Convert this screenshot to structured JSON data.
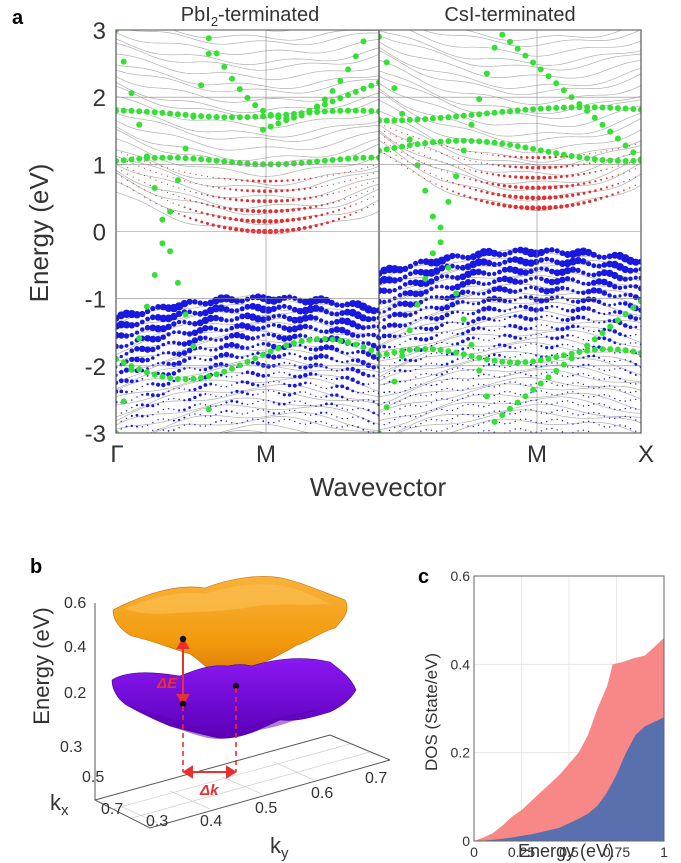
{
  "chart_data": [
    {
      "panel": "a",
      "type": "scatter",
      "title": "",
      "subplots": [
        {
          "title": "PbI2-terminated",
          "title_main": "PbI",
          "title_sub": "2",
          "title_tail": "-terminated"
        },
        {
          "title": "CsI-terminated"
        }
      ],
      "ylabel": "Energy (eV)",
      "xlabel": "Wavevector",
      "ylim": [
        -3,
        3
      ],
      "yticks": [
        "3",
        "2",
        "1",
        "0",
        "-1",
        "-2",
        "-3"
      ],
      "xtick_labels": {
        "gamma": "Γ",
        "m1": "M",
        "m2": "M",
        "x": "X"
      },
      "series": [
        {
          "name": "bulk bands",
          "color": "#b0b0b0"
        },
        {
          "name": "surface state (green)",
          "color": "#33e033"
        },
        {
          "name": "conduction weight (red)",
          "color": "#e03030"
        },
        {
          "name": "valence weight (blue)",
          "color": "#1818e0"
        }
      ],
      "cone_crossing_energy": 0,
      "conduction_band_min": 0.0,
      "valence_band_max_pbi2": -1.0,
      "valence_band_max_csi": -0.3
    },
    {
      "panel": "b",
      "type": "surface",
      "zlabel": "Energy (eV)",
      "xlabel": "k",
      "xlabel_sub": "x",
      "ylabel": "k",
      "ylabel_sub": "y",
      "zticks": [
        "0.6",
        "0.4",
        "0.2"
      ],
      "kx_ticks": [
        "0.3",
        "0.5",
        "0.7"
      ],
      "ky_ticks": [
        "0.3",
        "0.4",
        "0.5",
        "0.6",
        "0.7"
      ],
      "annotations": {
        "delta_e": "ΔE",
        "delta_k": "Δk"
      },
      "upper_surface_color": "#f5a20f",
      "lower_surface_color": "#7b00ee"
    },
    {
      "panel": "c",
      "type": "area",
      "xlabel": "Energy (eV)",
      "ylabel": "DOS (State/eV)",
      "xlim": [
        0,
        1
      ],
      "ylim": [
        0,
        0.6
      ],
      "xticks": [
        0,
        0.25,
        0.5,
        0.75,
        1
      ],
      "xtick_labels": [
        "0",
        "0.25",
        "0.5",
        "0.75",
        "1"
      ],
      "yticks": [
        0,
        0.2,
        0.4,
        0.6
      ],
      "ytick_labels": [
        "0",
        "0.2",
        "0.4",
        "0.6"
      ],
      "grid": true,
      "series": [
        {
          "name": "total",
          "color": "#f88888",
          "x": [
            0,
            0.05,
            0.1,
            0.15,
            0.2,
            0.25,
            0.3,
            0.35,
            0.4,
            0.45,
            0.5,
            0.55,
            0.6,
            0.65,
            0.7,
            0.73,
            0.78,
            0.85,
            0.9,
            0.95,
            1.0
          ],
          "values": [
            0,
            0.008,
            0.018,
            0.035,
            0.055,
            0.07,
            0.09,
            0.11,
            0.13,
            0.15,
            0.175,
            0.2,
            0.24,
            0.3,
            0.35,
            0.4,
            0.405,
            0.415,
            0.42,
            0.44,
            0.46
          ]
        },
        {
          "name": "projected",
          "color": "#5870ae",
          "x": [
            0,
            0.05,
            0.1,
            0.15,
            0.2,
            0.25,
            0.3,
            0.35,
            0.4,
            0.45,
            0.5,
            0.55,
            0.6,
            0.65,
            0.7,
            0.75,
            0.8,
            0.85,
            0.9,
            0.95,
            1.0
          ],
          "values": [
            0,
            0.001,
            0.003,
            0.005,
            0.008,
            0.012,
            0.015,
            0.02,
            0.025,
            0.03,
            0.04,
            0.05,
            0.062,
            0.08,
            0.11,
            0.15,
            0.2,
            0.24,
            0.26,
            0.27,
            0.28
          ]
        }
      ]
    }
  ],
  "panel_labels": {
    "a": "a",
    "b": "b",
    "c": "c"
  }
}
